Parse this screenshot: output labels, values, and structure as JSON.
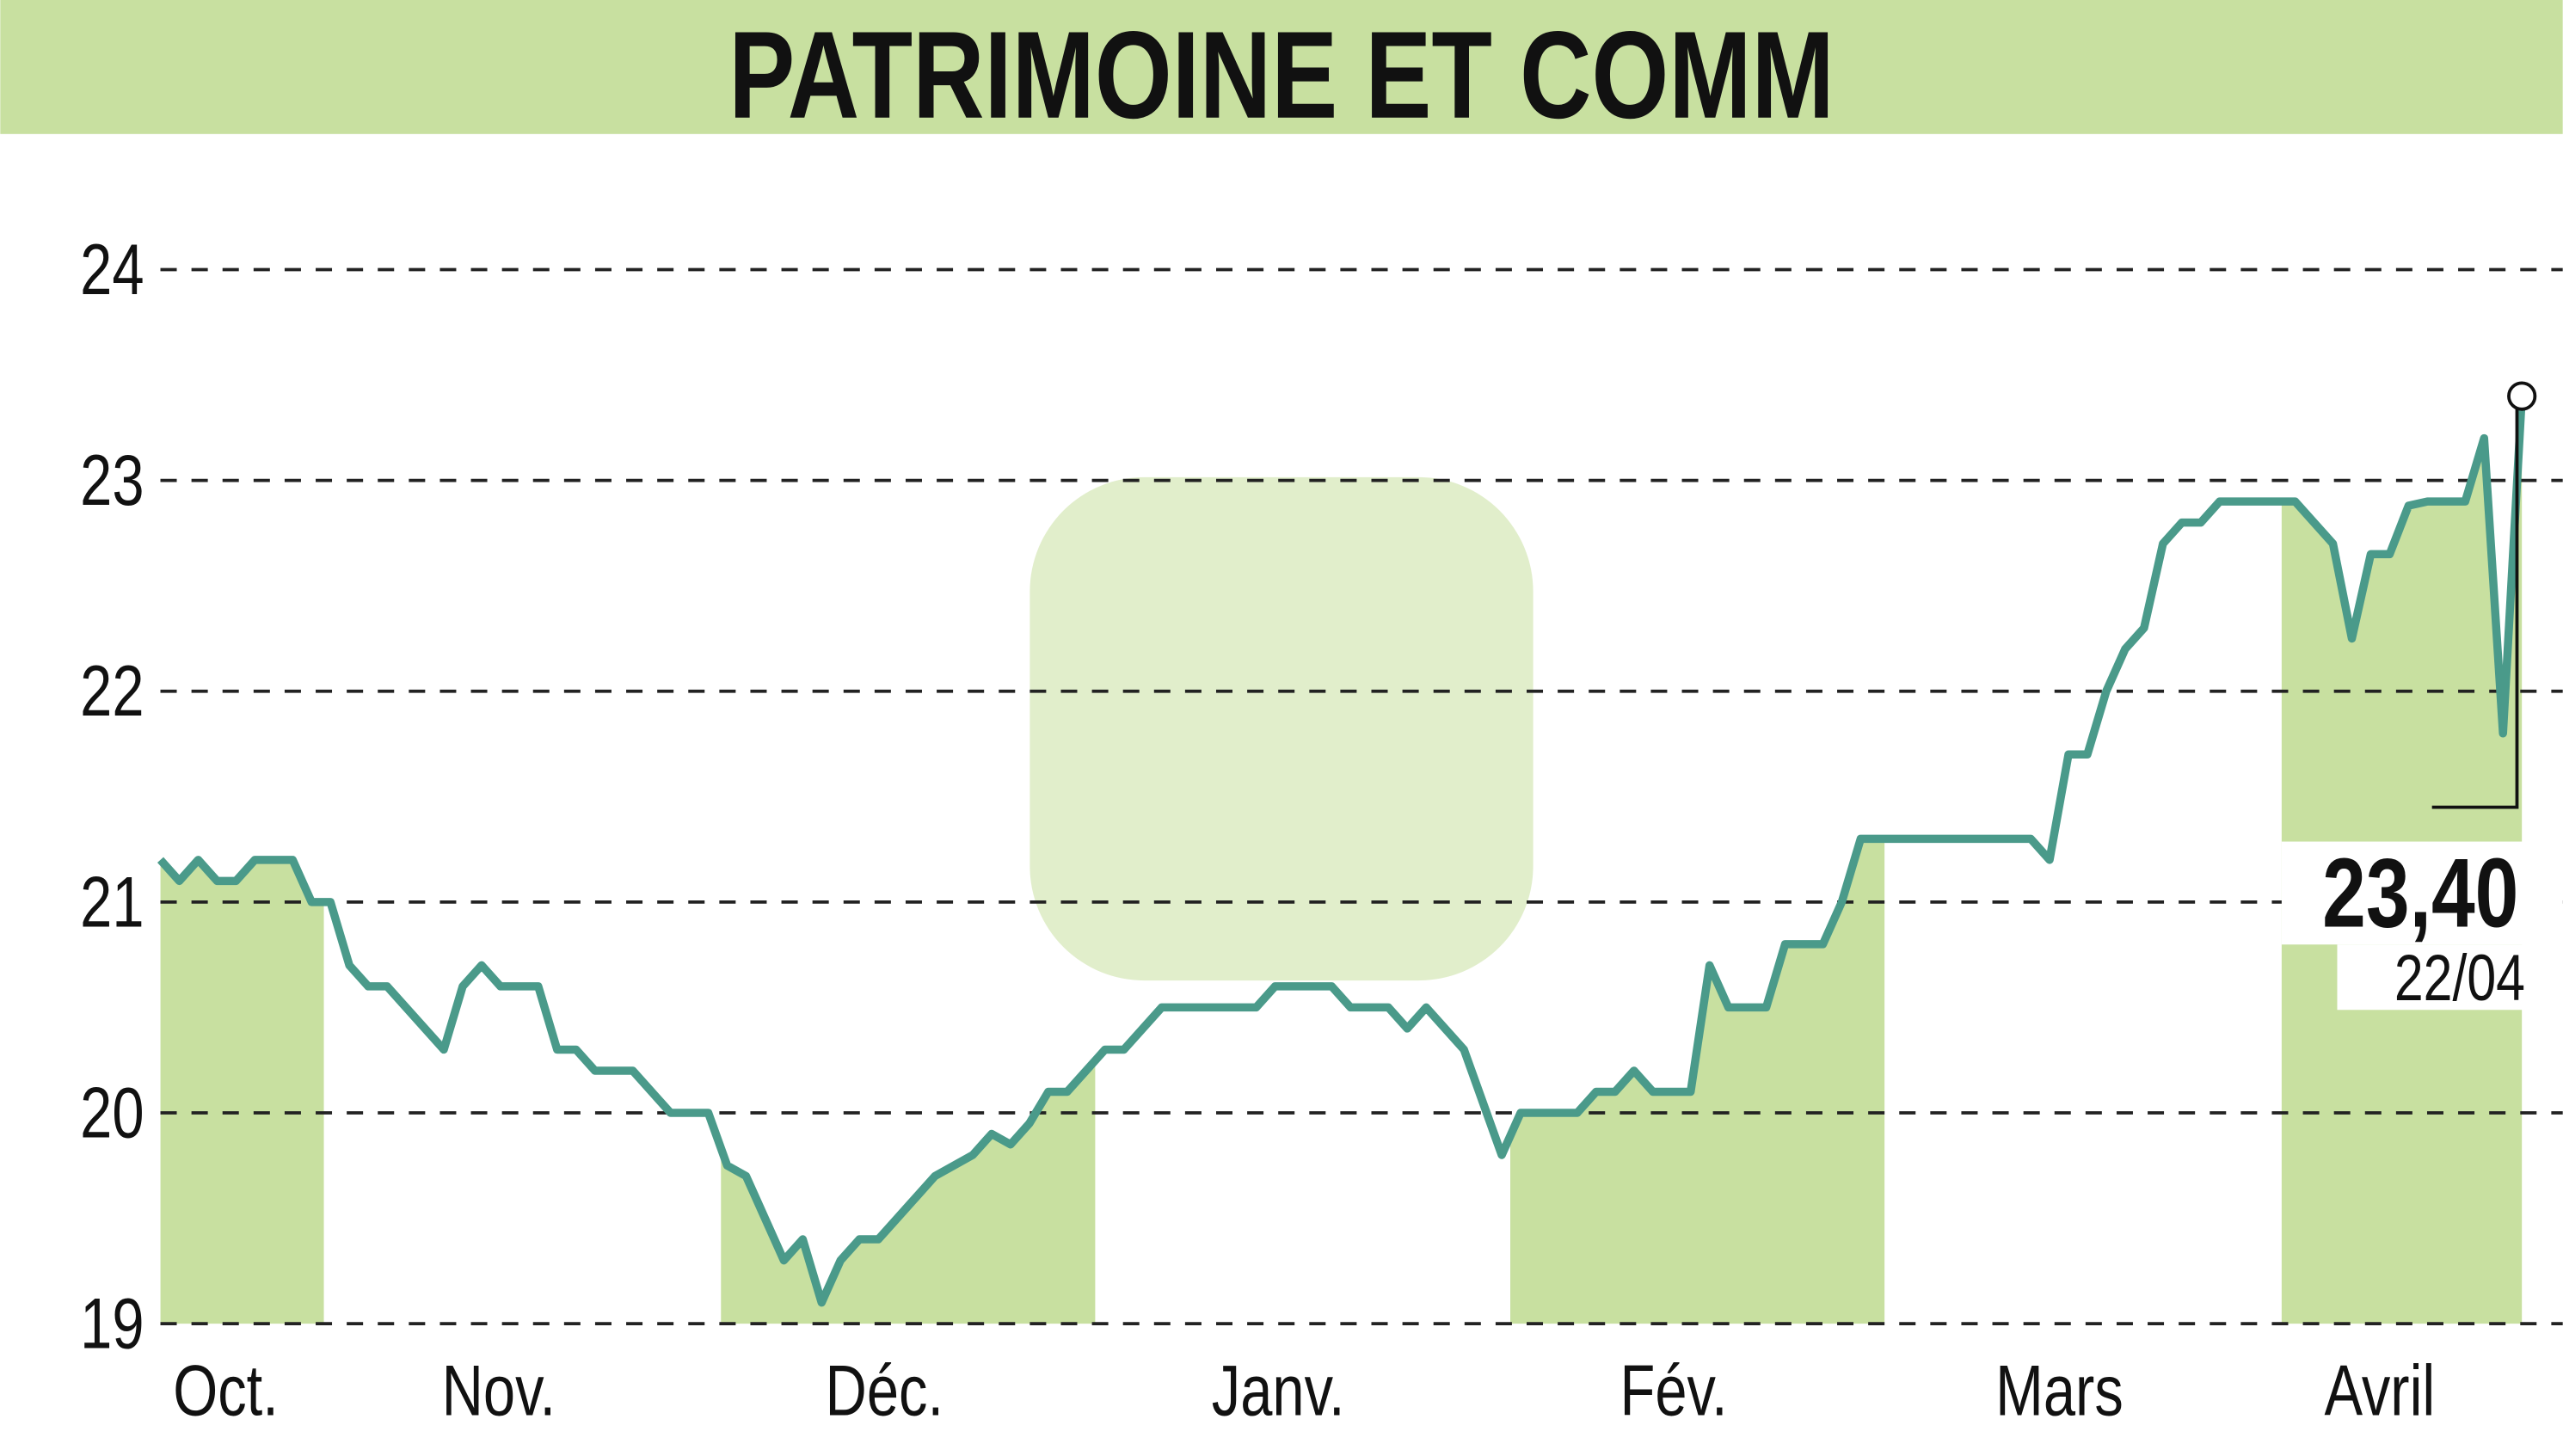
{
  "chart_data": {
    "type": "line",
    "title": "PATRIMOINE ET COMM",
    "x_labels": [
      "Oct.",
      "Nov.",
      "Déc.",
      "Janv.",
      "Fév.",
      "Mars",
      "Avril"
    ],
    "ylim": [
      19,
      24.6
    ],
    "yticks": [
      19,
      20,
      21,
      22,
      23,
      24
    ],
    "grid": true,
    "color": "#4a9a8a",
    "fill_color": "#c8e0a0",
    "values": [
      21.2,
      21.1,
      21.2,
      21.1,
      21.1,
      21.2,
      21.2,
      21.2,
      21.0,
      21.0,
      20.7,
      20.6,
      20.6,
      20.5,
      20.4,
      20.3,
      20.6,
      20.7,
      20.6,
      20.6,
      20.6,
      20.3,
      20.3,
      20.2,
      20.2,
      20.2,
      20.1,
      20.0,
      20.0,
      20.0,
      19.75,
      19.7,
      19.5,
      19.3,
      19.4,
      19.1,
      19.3,
      19.4,
      19.4,
      19.5,
      19.6,
      19.7,
      19.75,
      19.8,
      19.9,
      19.85,
      19.95,
      20.1,
      20.1,
      20.2,
      20.3,
      20.3,
      20.4,
      20.5,
      20.5,
      20.5,
      20.5,
      20.5,
      20.5,
      20.6,
      20.6,
      20.6,
      20.6,
      20.5,
      20.5,
      20.5,
      20.4,
      20.5,
      20.4,
      20.3,
      20.05,
      19.8,
      20.0,
      20.0,
      20.0,
      20.0,
      20.1,
      20.1,
      20.2,
      20.1,
      20.1,
      20.1,
      20.7,
      20.5,
      20.5,
      20.5,
      20.8,
      20.8,
      20.8,
      21.0,
      21.3,
      21.3,
      21.3,
      21.3,
      21.3,
      21.3,
      21.3,
      21.3,
      21.3,
      21.3,
      21.2,
      21.7,
      21.7,
      22.0,
      22.2,
      22.3,
      22.7,
      22.8,
      22.8,
      22.9,
      22.9,
      22.9,
      22.9,
      22.9,
      22.8,
      22.7,
      22.25,
      22.65,
      22.65,
      22.88,
      22.9,
      22.9,
      22.9,
      23.2,
      21.8,
      23.4
    ],
    "last_value_label": "23,40",
    "last_date": "22/04"
  }
}
